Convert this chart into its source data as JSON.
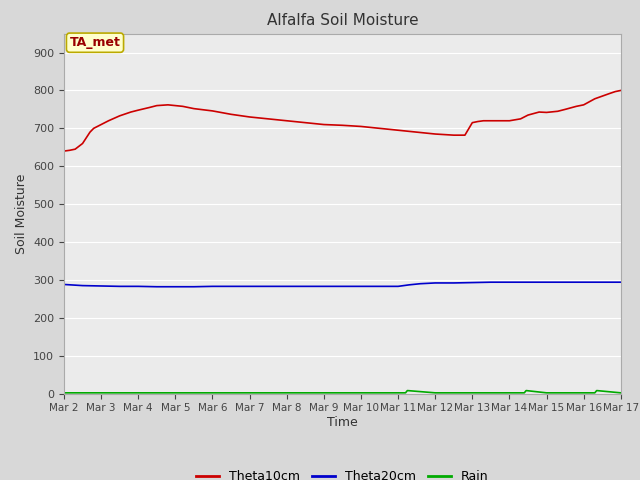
{
  "title": "Alfalfa Soil Moisture",
  "xlabel": "Time",
  "ylabel": "Soil Moisture",
  "ylim": [
    0,
    950
  ],
  "yticks": [
    0,
    100,
    200,
    300,
    400,
    500,
    600,
    700,
    800,
    900
  ],
  "bg_color": "#d8d8d8",
  "plot_bg_color": "#ebebeb",
  "annotation_text": "TA_met",
  "annotation_bg": "#ffffcc",
  "annotation_border": "#bbaa00",
  "legend_entries": [
    "Theta10cm",
    "Theta20cm",
    "Rain"
  ],
  "legend_colors": [
    "#cc0000",
    "#0000cc",
    "#00aa00"
  ],
  "theta10_x": [
    0,
    0.15,
    0.3,
    0.5,
    0.7,
    0.8,
    1.0,
    1.2,
    1.5,
    1.8,
    2.0,
    2.3,
    2.5,
    2.8,
    3.0,
    3.2,
    3.5,
    4.0,
    4.5,
    5.0,
    5.5,
    6.0,
    6.5,
    7.0,
    7.5,
    8.0,
    8.5,
    9.0,
    9.5,
    10.0,
    10.5,
    10.8,
    11.0,
    11.15,
    11.3,
    11.5,
    12.0,
    12.3,
    12.5,
    12.8,
    13.0,
    13.3,
    13.5,
    13.8,
    14.0,
    14.3,
    14.5,
    14.7,
    14.85,
    15.0
  ],
  "theta10_y": [
    640,
    642,
    645,
    660,
    690,
    700,
    710,
    720,
    733,
    743,
    748,
    755,
    760,
    762,
    760,
    758,
    752,
    746,
    737,
    730,
    725,
    720,
    715,
    710,
    708,
    705,
    700,
    695,
    690,
    685,
    682,
    682,
    715,
    718,
    720,
    720,
    720,
    725,
    735,
    743,
    742,
    745,
    750,
    758,
    762,
    778,
    785,
    792,
    797,
    800
  ],
  "theta20_x": [
    0,
    0.5,
    1.0,
    1.5,
    2.0,
    2.5,
    3.0,
    3.5,
    4.0,
    4.5,
    5.0,
    5.5,
    6.0,
    6.5,
    7.0,
    7.5,
    8.0,
    8.5,
    9.0,
    9.3,
    9.6,
    10.0,
    10.5,
    11.0,
    11.5,
    12.0,
    12.5,
    13.0,
    13.5,
    14.0,
    14.5,
    15.0
  ],
  "theta20_y": [
    288,
    285,
    284,
    283,
    283,
    282,
    282,
    282,
    283,
    283,
    283,
    283,
    283,
    283,
    283,
    283,
    283,
    283,
    283,
    287,
    290,
    292,
    292,
    293,
    294,
    294,
    294,
    294,
    294,
    294,
    294,
    294
  ],
  "rain_x": [
    0,
    1.0,
    5.0,
    9.2,
    9.25,
    10.0,
    12.4,
    12.45,
    13.0,
    14.3,
    14.35,
    15.0
  ],
  "rain_y": [
    2,
    2,
    2,
    2,
    8,
    2,
    2,
    8,
    2,
    2,
    8,
    2
  ],
  "xtick_labels": [
    "Mar 2",
    "Mar 3",
    "Mar 4",
    "Mar 5",
    "Mar 6",
    "Mar 7",
    "Mar 8",
    "Mar 9",
    "Mar 10",
    "Mar 11",
    "Mar 12",
    "Mar 13",
    "Mar 14",
    "Mar 15",
    "Mar 16",
    "Mar 17"
  ]
}
